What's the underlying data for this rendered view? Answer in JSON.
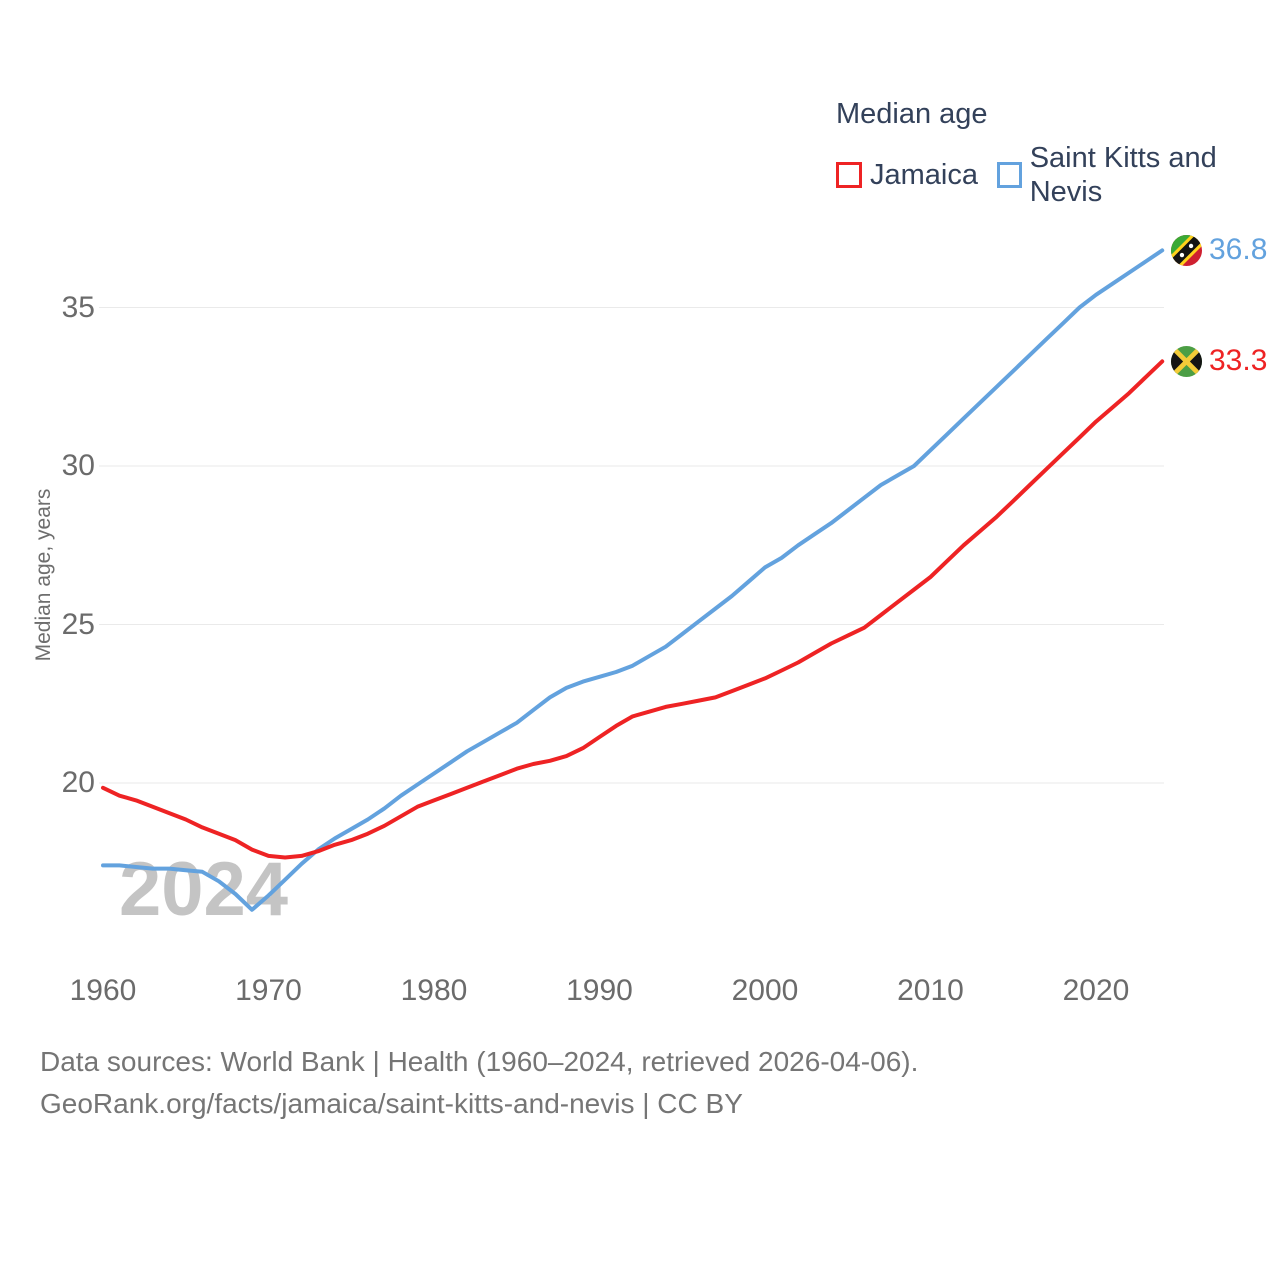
{
  "legend": {
    "title": "Median age",
    "items": [
      {
        "label": "Jamaica"
      },
      {
        "label": "Saint Kitts and Nevis"
      }
    ]
  },
  "y_axis": {
    "title": "Median age, years"
  },
  "watermark": {
    "text": "2024"
  },
  "footer": {
    "line1": "Data sources: World Bank | Health (1960–2024, retrieved 2026-04-06).",
    "line2": "GeoRank.org/facts/jamaica/saint-kitts-and-nevis | CC BY"
  },
  "colors": {
    "jamaica_line": "#ee2324",
    "saint_kitts_line": "#63a2de",
    "legend_text": "#33415a",
    "axis_text": "#6b6b6b",
    "grid": "#eaeaea",
    "watermark": "#c4c4c4",
    "footer_text": "#757575"
  },
  "chart_data": {
    "type": "line",
    "title": "Median age",
    "xlabel": "",
    "ylabel": "Median age, years",
    "grid": "horizontal",
    "legend_position": "top-right",
    "ylim": [
      15.5,
      37.5
    ],
    "xlim": [
      1960,
      2024
    ],
    "yticks": [
      20,
      25,
      30,
      35
    ],
    "xticks": [
      1960,
      1970,
      1980,
      1990,
      2000,
      2010,
      2020
    ],
    "x": [
      1960,
      1961,
      1962,
      1963,
      1964,
      1965,
      1966,
      1967,
      1968,
      1969,
      1970,
      1971,
      1972,
      1973,
      1974,
      1975,
      1976,
      1977,
      1978,
      1979,
      1980,
      1981,
      1982,
      1983,
      1984,
      1985,
      1986,
      1987,
      1988,
      1989,
      1990,
      1991,
      1992,
      1993,
      1994,
      1995,
      1996,
      1997,
      1998,
      1999,
      2000,
      2001,
      2002,
      2003,
      2004,
      2005,
      2006,
      2007,
      2008,
      2009,
      2010,
      2011,
      2012,
      2013,
      2014,
      2015,
      2016,
      2017,
      2018,
      2019,
      2020,
      2021,
      2022,
      2023,
      2024
    ],
    "series": [
      {
        "name": "Jamaica",
        "color": "#ee2324",
        "end_label": "33.3",
        "values": [
          19.85,
          19.6,
          19.45,
          19.25,
          19.05,
          18.85,
          18.6,
          18.4,
          18.2,
          17.9,
          17.7,
          17.65,
          17.7,
          17.85,
          18.05,
          18.2,
          18.4,
          18.65,
          18.95,
          19.25,
          19.45,
          19.65,
          19.85,
          20.05,
          20.25,
          20.45,
          20.6,
          20.7,
          20.85,
          21.1,
          21.45,
          21.8,
          22.1,
          22.25,
          22.4,
          22.5,
          22.6,
          22.7,
          22.9,
          23.1,
          23.3,
          23.55,
          23.8,
          24.1,
          24.4,
          24.65,
          24.9,
          25.3,
          25.7,
          26.1,
          26.5,
          27.0,
          27.5,
          27.95,
          28.4,
          28.9,
          29.4,
          29.9,
          30.4,
          30.9,
          31.4,
          31.85,
          32.3,
          32.8,
          33.3
        ]
      },
      {
        "name": "Saint Kitts and Nevis",
        "color": "#63a2de",
        "end_label": "36.8",
        "values": [
          17.4,
          17.4,
          17.35,
          17.3,
          17.3,
          17.25,
          17.2,
          16.9,
          16.5,
          16.0,
          16.45,
          16.95,
          17.45,
          17.9,
          18.25,
          18.55,
          18.85,
          19.2,
          19.6,
          19.95,
          20.3,
          20.65,
          21.0,
          21.3,
          21.6,
          21.9,
          22.3,
          22.7,
          23.0,
          23.2,
          23.35,
          23.5,
          23.7,
          24.0,
          24.3,
          24.7,
          25.1,
          25.5,
          25.9,
          26.35,
          26.8,
          27.1,
          27.5,
          27.85,
          28.2,
          28.6,
          29.0,
          29.4,
          29.7,
          30.0,
          30.5,
          31.0,
          31.5,
          32.0,
          32.5,
          33.0,
          33.5,
          34.0,
          34.5,
          35.0,
          35.4,
          35.75,
          36.1,
          36.45,
          36.8
        ]
      }
    ]
  }
}
